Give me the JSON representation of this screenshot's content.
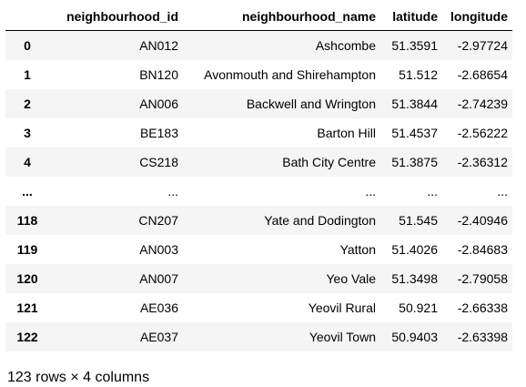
{
  "table": {
    "index_header": "",
    "columns": [
      "neighbourhood_id",
      "neighbourhood_name",
      "latitude",
      "longitude"
    ],
    "rows": [
      {
        "index": "0",
        "cells": [
          "AN012",
          "Ashcombe",
          "51.3591",
          "-2.97724"
        ]
      },
      {
        "index": "1",
        "cells": [
          "BN120",
          "Avonmouth and Shirehampton",
          "51.512",
          "-2.68654"
        ]
      },
      {
        "index": "2",
        "cells": [
          "AN006",
          "Backwell and Wrington",
          "51.3844",
          "-2.74239"
        ]
      },
      {
        "index": "3",
        "cells": [
          "BE183",
          "Barton Hill",
          "51.4537",
          "-2.56222"
        ]
      },
      {
        "index": "4",
        "cells": [
          "CS218",
          "Bath City Centre",
          "51.3875",
          "-2.36312"
        ]
      },
      {
        "index": "...",
        "cells": [
          "...",
          "...",
          "...",
          "..."
        ]
      },
      {
        "index": "118",
        "cells": [
          "CN207",
          "Yate and Dodington",
          "51.545",
          "-2.40946"
        ]
      },
      {
        "index": "119",
        "cells": [
          "AN003",
          "Yatton",
          "51.4026",
          "-2.84683"
        ]
      },
      {
        "index": "120",
        "cells": [
          "AN007",
          "Yeo Vale",
          "51.3498",
          "-2.79058"
        ]
      },
      {
        "index": "121",
        "cells": [
          "AE036",
          "Yeovil Rural",
          "50.921",
          "-2.66338"
        ]
      },
      {
        "index": "122",
        "cells": [
          "AE037",
          "Yeovil Town",
          "50.9403",
          "-2.63398"
        ]
      }
    ]
  },
  "shape_text": "123 rows × 4 columns",
  "colors": {
    "row_stripe": "#f5f5f5",
    "header_border": "#000000",
    "text": "#000000"
  }
}
